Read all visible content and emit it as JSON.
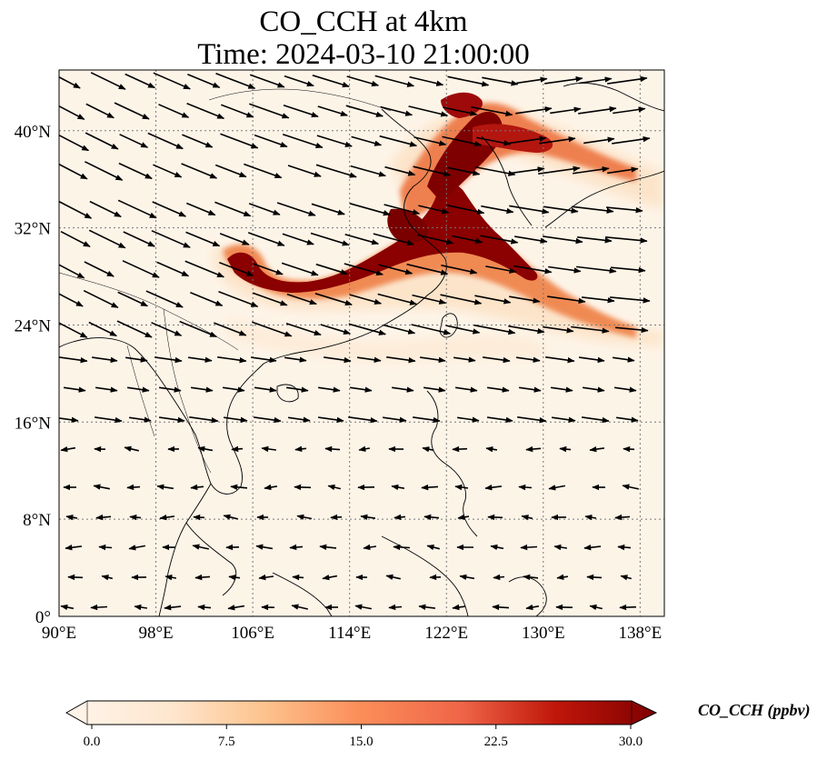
{
  "title": {
    "line1": "CO_CCH at 4km",
    "line2": "Time: 2024-03-10 21:00:00"
  },
  "map": {
    "lon_range": [
      90,
      140
    ],
    "lat_range": [
      0,
      45
    ],
    "lon_ticks": [
      "90°E",
      "98°E",
      "106°E",
      "114°E",
      "122°E",
      "130°E",
      "138°E"
    ],
    "lat_ticks": [
      "0°",
      "8°N",
      "16°N",
      "24°N",
      "32°N",
      "40°N"
    ],
    "gridlines": true
  },
  "colorbar": {
    "title": "CO_CCH (ppbv)",
    "ticks": [
      "0.0",
      "7.5",
      "15.0",
      "22.5",
      "30.0"
    ],
    "range": [
      0,
      30
    ],
    "colors": [
      "#fff5eb",
      "#fdd9b4",
      "#fda762",
      "#f3701b",
      "#d94801",
      "#a63603",
      "#7f0000"
    ],
    "extend": "both"
  }
}
